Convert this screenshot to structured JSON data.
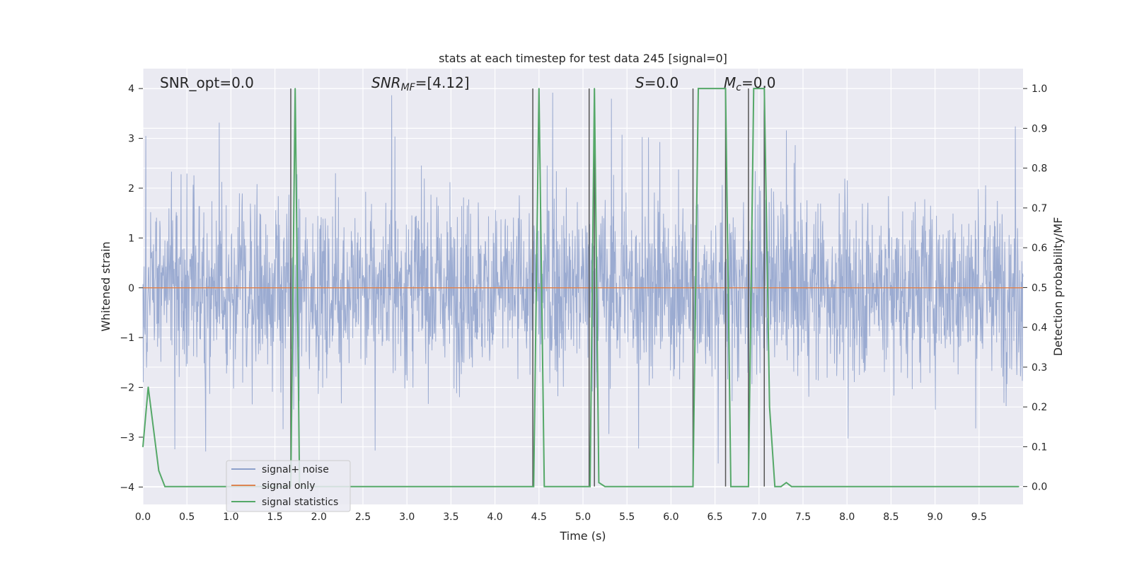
{
  "chart_data": {
    "type": "line",
    "title": "stats at each timestep for test data 245 [signal=0]",
    "xlabel": "Time (s)",
    "ylabel_left": "Whitened strain",
    "ylabel_right": "Detection probability/MF",
    "xlim": [
      0.0,
      10.0
    ],
    "ylim_left": [
      -4.35,
      4.4
    ],
    "ylim_right": [
      -0.045,
      1.05
    ],
    "x_ticks": [
      "0.0",
      "0.5",
      "1.0",
      "1.5",
      "2.0",
      "2.5",
      "3.0",
      "3.5",
      "4.0",
      "4.5",
      "5.0",
      "5.5",
      "6.0",
      "6.5",
      "7.0",
      "7.5",
      "8.0",
      "8.5",
      "9.0",
      "9.5"
    ],
    "y_left_ticks": [
      {
        "value": 4,
        "label": "4"
      },
      {
        "value": 3,
        "label": "3"
      },
      {
        "value": 2,
        "label": "2"
      },
      {
        "value": 1,
        "label": "1"
      },
      {
        "value": 0,
        "label": "0"
      },
      {
        "value": -1,
        "label": "−1"
      },
      {
        "value": -2,
        "label": "−2"
      },
      {
        "value": -3,
        "label": "−3"
      },
      {
        "value": -4,
        "label": "−4"
      }
    ],
    "y_right_ticks": [
      "0.0",
      "0.1",
      "0.2",
      "0.3",
      "0.4",
      "0.5",
      "0.6",
      "0.7",
      "0.8",
      "0.9",
      "1.0"
    ],
    "annotations": {
      "snr_opt": "SNR_opt=0.0",
      "snr_mf_sym": "SNR",
      "snr_mf_sub": "MF",
      "snr_mf_val": "=[4.12]",
      "s_sym": "S",
      "s_val": "=0.0",
      "mc_sym": "M",
      "mc_sub": "c",
      "mc_val": "=0.0"
    },
    "series": [
      {
        "name": "signal+ noise",
        "color": "#8da0cb",
        "axis": "left",
        "style": "dense noise trace, approx. ±1.6 core, spikes to ±4"
      },
      {
        "name": "signal only",
        "color": "#dd8452",
        "axis": "left",
        "values_constant": 0.0
      },
      {
        "name": "signal statistics",
        "color": "#55a868",
        "axis": "right",
        "x": [
          0.0,
          0.06,
          0.18,
          0.25,
          1.67,
          1.68,
          1.73,
          1.78,
          1.79,
          4.43,
          4.44,
          4.5,
          4.56,
          5.07,
          5.08,
          5.13,
          5.18,
          5.25,
          6.25,
          6.31,
          6.62,
          6.68,
          6.88,
          6.94,
          7.06,
          7.12,
          7.18,
          7.25,
          7.31,
          7.37,
          7.43,
          9.95
        ],
        "values": [
          0.1,
          0.25,
          0.04,
          0.0,
          0.0,
          0.0,
          1.0,
          0.0,
          0.0,
          0.0,
          0.0,
          1.0,
          0.0,
          0.0,
          0.0,
          1.0,
          0.01,
          0.0,
          0.0,
          1.0,
          1.0,
          0.0,
          0.0,
          1.0,
          1.0,
          0.2,
          0.0,
          0.0,
          0.01,
          0.0,
          0.0,
          0.0
        ]
      },
      {
        "name": "detection markers",
        "color": "#555555",
        "axis": "right",
        "type": "vlines",
        "x": [
          1.68,
          4.43,
          5.07,
          5.13,
          6.25,
          6.62,
          6.88,
          7.06
        ]
      }
    ],
    "legend": {
      "placement": "lower-left",
      "entries": [
        "signal+ noise",
        "signal only",
        "signal statistics"
      ]
    },
    "grid": true
  }
}
